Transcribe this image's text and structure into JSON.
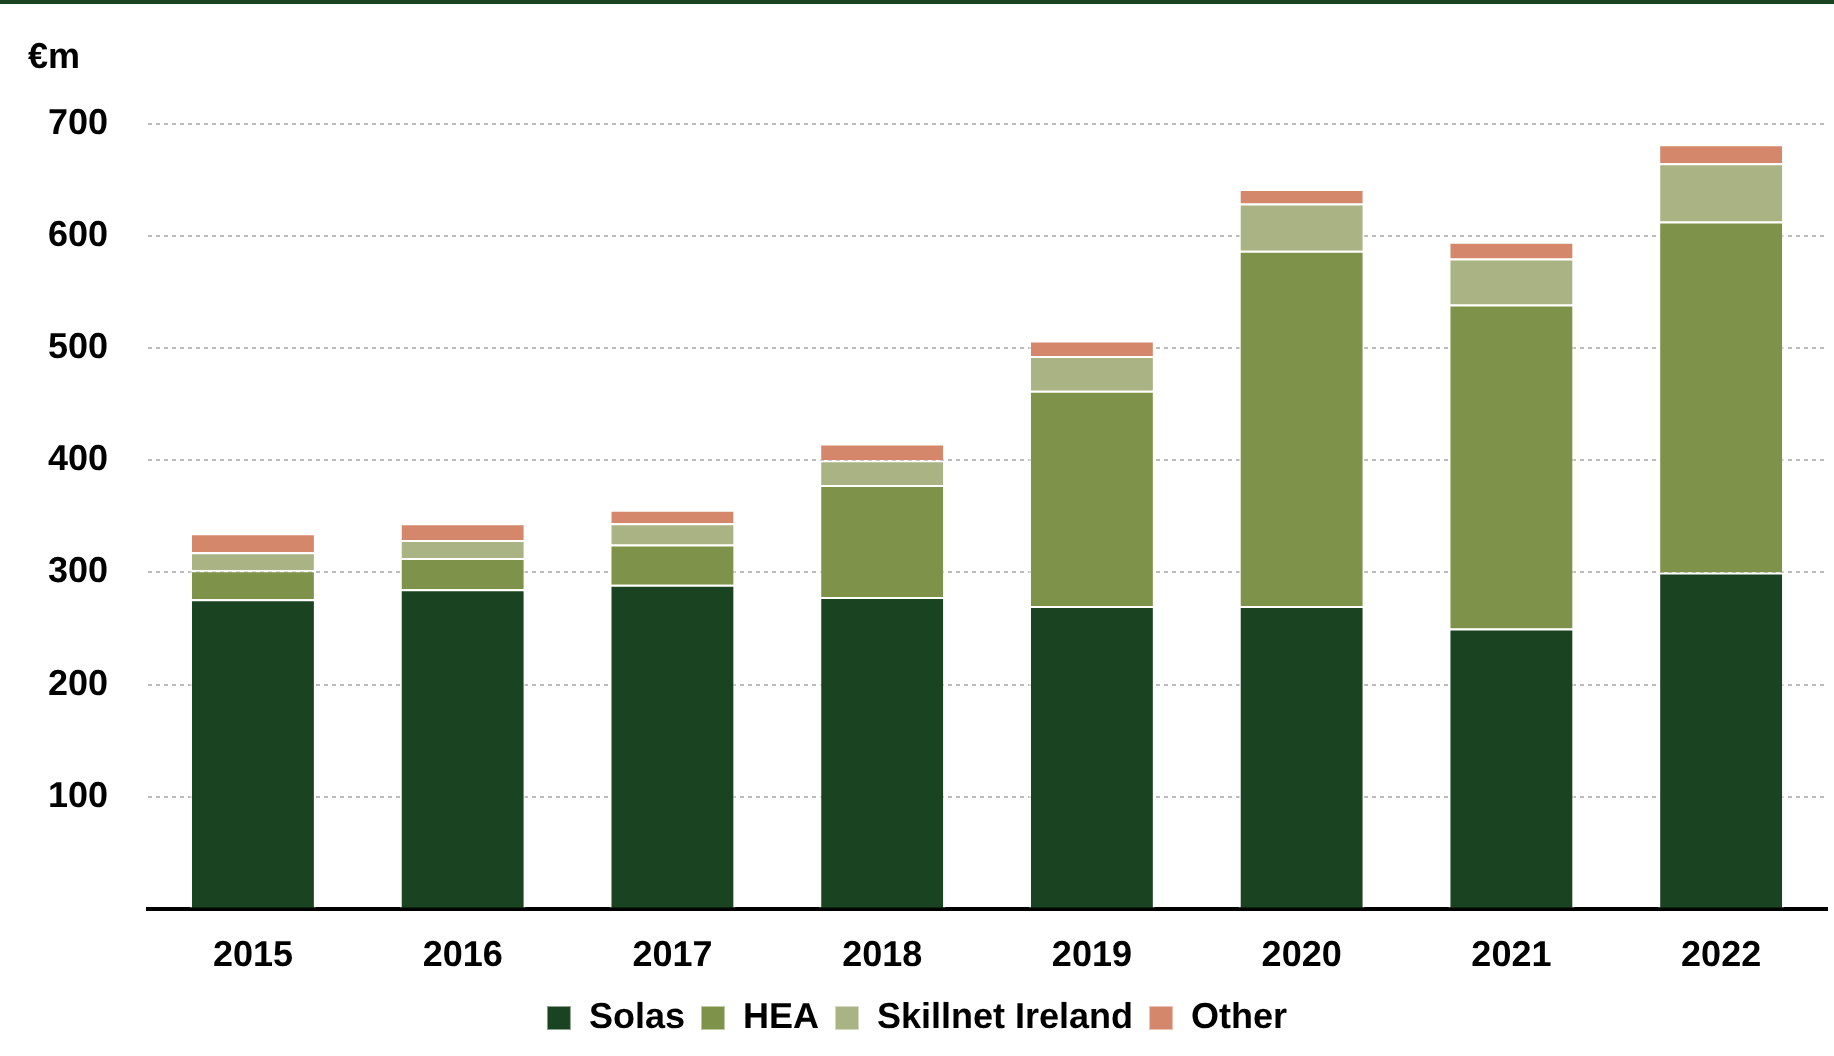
{
  "chart_data": {
    "type": "bar",
    "stacked": true,
    "ylabel": "€m",
    "categories": [
      "2015",
      "2016",
      "2017",
      "2018",
      "2019",
      "2020",
      "2021",
      "2022"
    ],
    "series": [
      {
        "name": "Solas",
        "color": "#1a4321",
        "values": [
          276,
          285,
          289,
          278,
          270,
          270,
          250,
          300
        ]
      },
      {
        "name": "HEA",
        "color": "#7f924a",
        "values": [
          26,
          28,
          36,
          100,
          192,
          317,
          289,
          313
        ]
      },
      {
        "name": "Skillnet Ireland",
        "color": "#aab384",
        "values": [
          16,
          16,
          19,
          22,
          31,
          42,
          41,
          52
        ]
      },
      {
        "name": "Other",
        "color": "#d4876a",
        "values": [
          17,
          15,
          12,
          15,
          14,
          13,
          15,
          17
        ]
      }
    ],
    "ylim": [
      0,
      700
    ],
    "yticks": [
      {
        "value": 0,
        "label": null
      },
      100,
      200,
      300,
      400,
      500,
      600,
      700
    ],
    "grid": "y",
    "legend": "bottom"
  }
}
